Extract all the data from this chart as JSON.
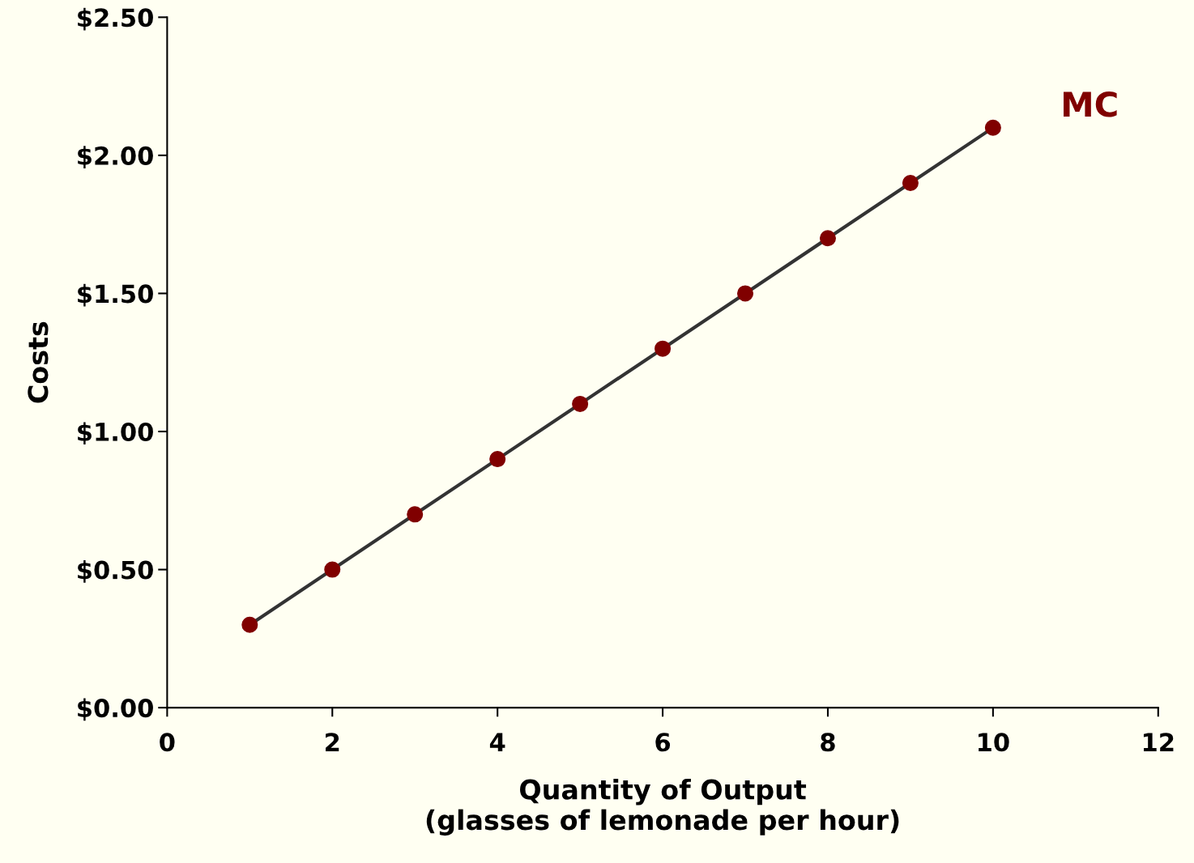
{
  "chart_data": {
    "type": "line",
    "xlabel": "Quantity of Output\n(glasses of lemonade per hour)",
    "ylabel": "Costs",
    "x": [
      1,
      2,
      3,
      4,
      5,
      6,
      7,
      8,
      9,
      10
    ],
    "series": [
      {
        "name": "MC",
        "color": "#800000",
        "values": [
          0.3,
          0.5,
          0.7,
          0.9,
          1.1,
          1.3,
          1.5,
          1.7,
          1.9,
          2.1
        ]
      }
    ],
    "xlim": [
      0,
      12
    ],
    "xticks": [
      0,
      2,
      4,
      6,
      8,
      10,
      12
    ],
    "ylim": [
      0,
      2.5
    ],
    "yticks": [
      {
        "value": 0,
        "label": "$0.00"
      },
      {
        "value": 0.5,
        "label": "$0.50"
      },
      {
        "value": 1,
        "label": "$1.00"
      },
      {
        "value": 1.5,
        "label": "$1.50"
      },
      {
        "value": 2,
        "label": "$2.00"
      },
      {
        "value": 2.5,
        "label": "$2.50"
      }
    ],
    "marker": "circle",
    "line_style": "solid",
    "grid": false,
    "legend": false
  }
}
